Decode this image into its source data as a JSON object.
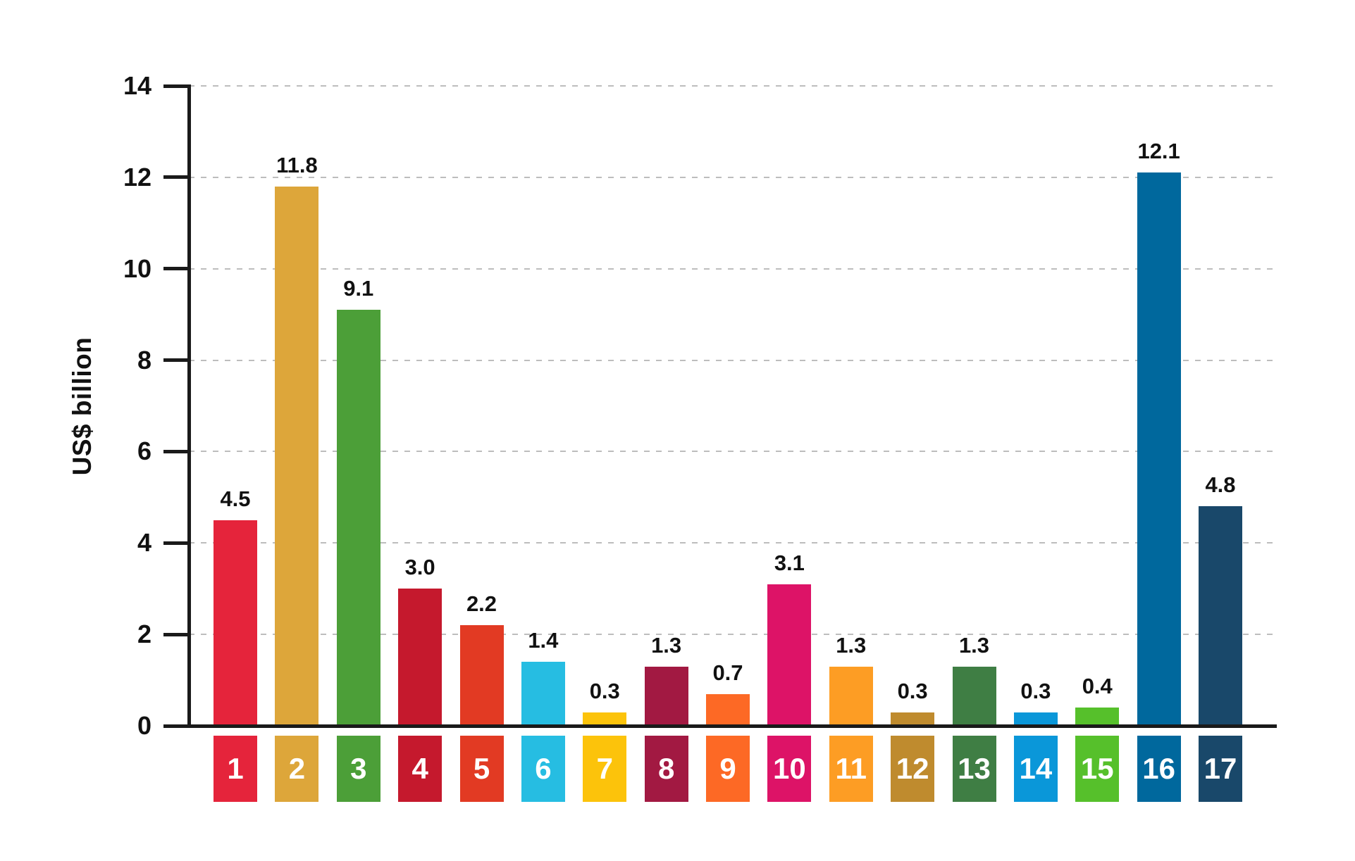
{
  "chart_data": {
    "type": "bar",
    "ylabel": "US$ billion",
    "xlabel": "",
    "ylim": [
      0,
      14
    ],
    "yticks": [
      0,
      2,
      4,
      6,
      8,
      10,
      12,
      14
    ],
    "grid": "horizontal-dashed",
    "legend": "none",
    "categories": [
      "1",
      "2",
      "3",
      "4",
      "5",
      "6",
      "7",
      "8",
      "9",
      "10",
      "11",
      "12",
      "13",
      "14",
      "15",
      "16",
      "17"
    ],
    "values": [
      4.5,
      11.8,
      9.1,
      3.0,
      2.2,
      1.4,
      0.3,
      1.3,
      0.7,
      3.1,
      1.3,
      0.3,
      1.3,
      0.3,
      0.4,
      12.1,
      4.8
    ],
    "value_labels": [
      "4.5",
      "11.8",
      "9.1",
      "3.0",
      "2.2",
      "1.4",
      "0.3",
      "1.3",
      "0.7",
      "3.1",
      "1.3",
      "0.3",
      "1.3",
      "0.3",
      "0.4",
      "12.1",
      "4.8"
    ],
    "bar_colors": [
      "#E5243B",
      "#DDA63A",
      "#4C9F38",
      "#C5192D",
      "#E23A23",
      "#26BDE2",
      "#FCC30B",
      "#A21942",
      "#FD6925",
      "#DD1367",
      "#FD9D24",
      "#BF8B2E",
      "#3F7E44",
      "#0A97D9",
      "#56C02B",
      "#00689D",
      "#19486A"
    ],
    "category_text_color": "#FFFFFF",
    "axis_color": "#1A1A1A",
    "gridline_color": "#BDBDBD",
    "value_text_color": "#111111"
  }
}
